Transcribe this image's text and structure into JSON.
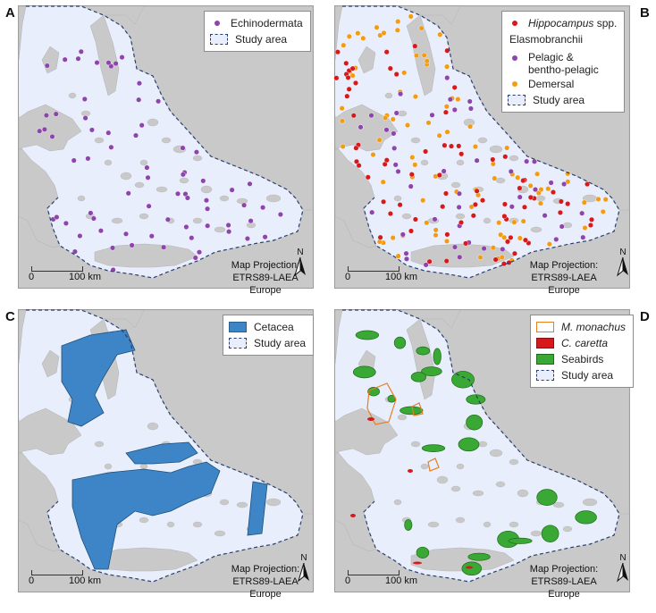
{
  "panels": [
    {
      "letter": "A",
      "legend": {
        "items": [
          {
            "label": "Echinodermata",
            "symbol": "dot",
            "color": "#8e44ad"
          },
          {
            "label": "Study area",
            "symbol": "dashbox"
          }
        ]
      }
    },
    {
      "letter": "B",
      "legend": {
        "items": [
          {
            "label_italic": "Hippocampus",
            "label_rest": " spp.",
            "symbol": "dot",
            "color": "#d7191c"
          },
          {
            "label": "Elasmobranchii",
            "symbol": "none"
          },
          {
            "label": "Pelagic &",
            "label2": "bentho-pelagic",
            "symbol": "dot",
            "color": "#8e44ad"
          },
          {
            "label": "Demersal",
            "symbol": "dot",
            "color": "#f39c12"
          },
          {
            "label": "Study area",
            "symbol": "dashbox"
          }
        ]
      }
    },
    {
      "letter": "C",
      "legend": {
        "items": [
          {
            "label": "Cetacea",
            "symbol": "box",
            "color": "#3d85c6"
          },
          {
            "label": "Study area",
            "symbol": "dashbox"
          }
        ]
      }
    },
    {
      "letter": "D",
      "legend": {
        "items": [
          {
            "label": "M. monachus",
            "symbol": "outline",
            "color": "#e67e22",
            "italic": true
          },
          {
            "label": "C. caretta",
            "symbol": "box",
            "color": "#d7191c",
            "italic": true
          },
          {
            "label": "Seabirds",
            "symbol": "box",
            "color": "#3aa834"
          },
          {
            "label": "Study area",
            "symbol": "dashbox"
          }
        ]
      }
    }
  ],
  "map_common": {
    "projection_line1": "Map Projection:",
    "projection_line2": "ETRS89-LAEA Europe",
    "scale_zero": "0",
    "scale_value": "100",
    "scale_unit": "km",
    "north_label": "N"
  },
  "colors": {
    "land": "#c9c9c9",
    "sea": "#e8eefc",
    "boundary": "#2b3f6e",
    "echinodermata": "#8e44ad",
    "hippocampus": "#d7191c",
    "pelagic": "#8e44ad",
    "demersal": "#f39c12",
    "cetacea": "#3d85c6",
    "monachus": "#e67e22",
    "caretta": "#d7191c",
    "seabirds": "#3aa834"
  }
}
